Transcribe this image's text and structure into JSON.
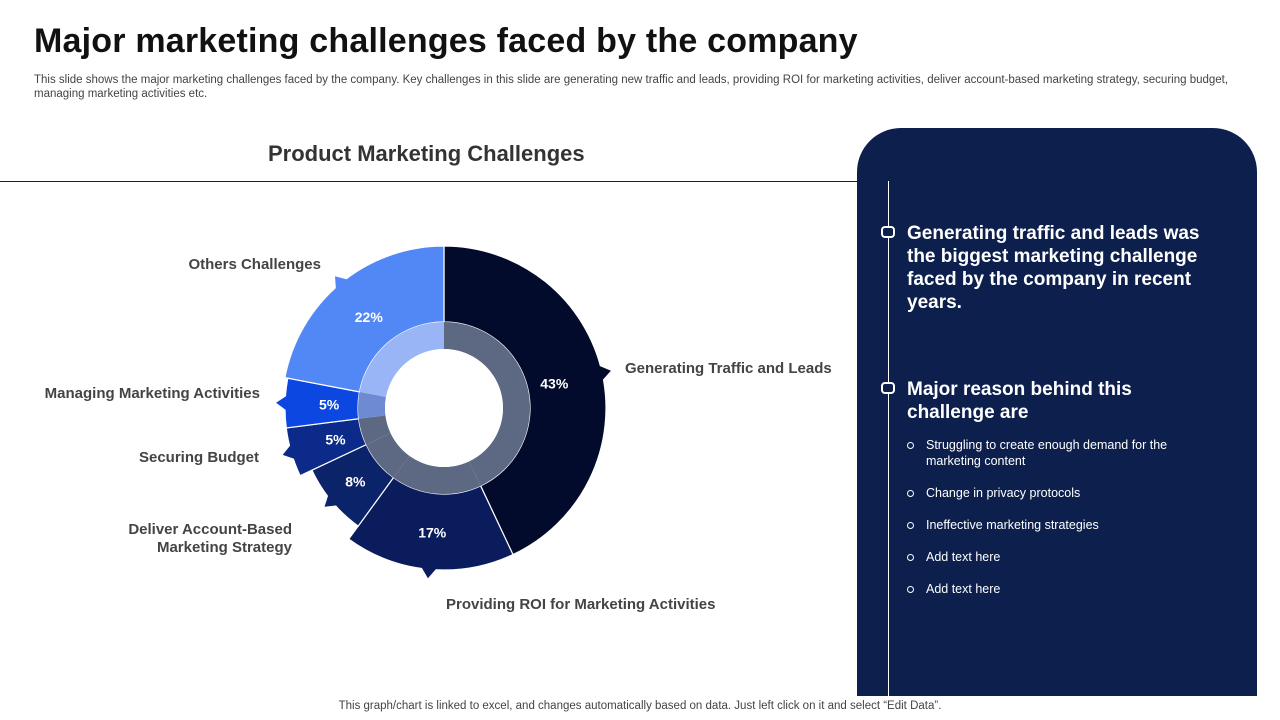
{
  "slide": {
    "title": "Major marketing challenges faced by the company",
    "subtitle": "This slide shows the major marketing challenges faced by the company. Key challenges in this slide are generating new traffic and leads, providing ROI for marketing activities, deliver account-based marketing strategy, securing budget, managing marketing activities etc.",
    "footer": "This graph/chart is linked to excel,  and changes automatically based on data. Just left click on it and select “Edit Data”."
  },
  "panel": {
    "heading1": "Generating traffic and leads was the biggest marketing challenge faced by the company in recent years.",
    "heading2": "Major reason behind this challenge are",
    "bullets": [
      "Struggling to create enough demand for the marketing content",
      "Change in privacy protocols",
      "Ineffective  marketing strategies",
      "Add text here",
      "Add text here"
    ]
  },
  "chart_data": {
    "type": "pie",
    "title": "Product Marketing Challenges",
    "categories": [
      "Generating Traffic and Leads",
      "Providing ROI for Marketing Activities",
      "Deliver Account-Based Marketing Strategy",
      "Securing Budget",
      "Managing Marketing Activities",
      "Others Challenges"
    ],
    "values": [
      43,
      17,
      8,
      5,
      5,
      22
    ],
    "value_labels": [
      "43%",
      "17%",
      "8%",
      "5%",
      "5%",
      "22%"
    ],
    "colors": [
      "#020b2b",
      "#0a1c5c",
      "#0b2369",
      "#0c2a8a",
      "#0b47e0",
      "#5288f5"
    ],
    "inner_colors": [
      "#5d6882",
      "#5d6882",
      "#5d6882",
      "#5d6882",
      "#6d8ad3",
      "#9ab5f5"
    ],
    "legend": "none"
  }
}
